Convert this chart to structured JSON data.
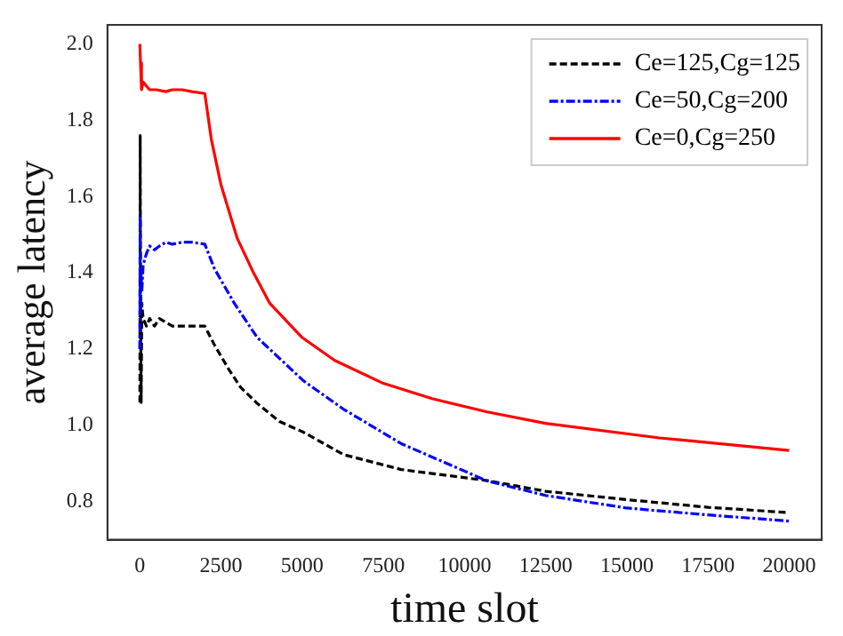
{
  "chart_data": {
    "type": "line",
    "xlabel": "time slot",
    "ylabel": "average latency",
    "xlim": [
      -1000,
      21000
    ],
    "xticks": [
      0,
      2500,
      5000,
      7500,
      10000,
      12500,
      15000,
      17500,
      20000
    ],
    "ylim": [
      0.7,
      2.05
    ],
    "yticks": [
      {
        "value": 0.8,
        "label": "0.8"
      },
      {
        "value": 1,
        "label": "1.0"
      },
      {
        "value": 1.2,
        "label": "1.2"
      },
      {
        "value": 1.4,
        "label": "1.4"
      },
      {
        "value": 1.6,
        "label": "1.6"
      },
      {
        "value": 1.8,
        "label": "1.8"
      },
      {
        "value": 2,
        "label": "2.0"
      }
    ],
    "grid": false,
    "legend": "top right",
    "marker": "none",
    "series": [
      {
        "name": "Ce=125,Cg=125",
        "color": "#000000",
        "line_style": "dashed",
        "x": [
          0,
          10,
          20,
          40,
          60,
          100,
          200,
          300,
          450,
          600,
          800,
          1000,
          1300,
          1600,
          2000,
          2300,
          2730,
          3100,
          3617,
          4300,
          5036,
          6277,
          8050,
          10700,
          12500,
          15000,
          17500,
          20000
        ],
        "values": [
          1.06,
          1.76,
          1.3,
          1.06,
          1.32,
          1.28,
          1.26,
          1.28,
          1.26,
          1.28,
          1.27,
          1.26,
          1.26,
          1.26,
          1.26,
          1.21,
          1.148,
          1.1,
          1.057,
          1.01,
          0.982,
          0.923,
          0.884,
          0.855,
          0.827,
          0.805,
          0.785,
          0.771
        ]
      },
      {
        "name": "Ce=50,Cg=200",
        "color": "#0000ff",
        "line_style": "dashdot",
        "x": [
          0,
          10,
          20,
          40,
          60,
          100,
          200,
          300,
          450,
          600,
          800,
          1000,
          1300,
          1600,
          2000,
          2300,
          2908,
          3617,
          5036,
          6277,
          8050,
          10700,
          12500,
          15000,
          17500,
          20000
        ],
        "values": [
          1.2,
          1.55,
          1.3,
          1.4,
          1.35,
          1.42,
          1.45,
          1.47,
          1.46,
          1.47,
          1.48,
          1.475,
          1.48,
          1.48,
          1.475,
          1.41,
          1.32,
          1.23,
          1.117,
          1.042,
          0.952,
          0.854,
          0.816,
          0.783,
          0.765,
          0.749
        ]
      },
      {
        "name": "Ce=0,Cg=250",
        "color": "#ff0000",
        "line_style": "solid",
        "x": [
          0,
          20,
          50,
          100,
          200,
          300,
          500,
          800,
          1000,
          1300,
          1600,
          2000,
          2200,
          2500,
          3000,
          3500,
          4000,
          5000,
          6000,
          7500,
          9000,
          10700,
          12500,
          16000,
          20000
        ],
        "values": [
          2.0,
          1.95,
          1.88,
          1.9,
          1.89,
          1.88,
          1.88,
          1.875,
          1.88,
          1.88,
          1.875,
          1.87,
          1.75,
          1.63,
          1.49,
          1.4,
          1.32,
          1.23,
          1.17,
          1.11,
          1.07,
          1.035,
          1.005,
          0.967,
          0.934
        ]
      }
    ]
  }
}
